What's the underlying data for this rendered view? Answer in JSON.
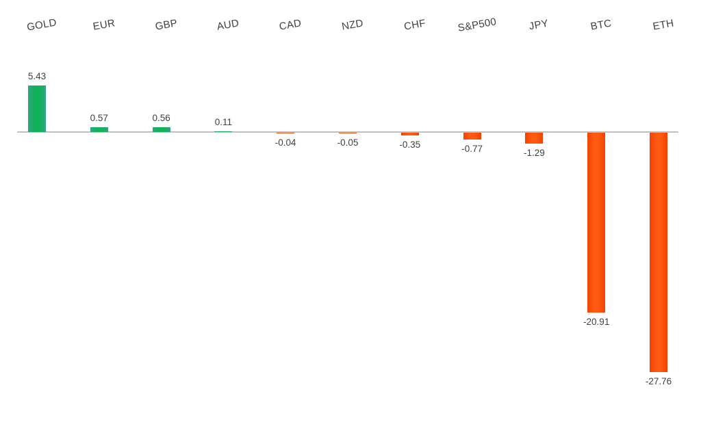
{
  "chart_data": {
    "type": "bar",
    "title": "",
    "xlabel": "",
    "ylabel": "",
    "categories": [
      "GOLD",
      "EUR",
      "GBP",
      "AUD",
      "CAD",
      "NZD",
      "CHF",
      "S&P500",
      "JPY",
      "BTC",
      "ETH"
    ],
    "values": [
      5.43,
      0.57,
      0.56,
      0.11,
      -0.04,
      -0.05,
      -0.35,
      -0.77,
      -1.29,
      -20.91,
      -27.76
    ],
    "value_labels": [
      "5.43",
      "0.57",
      "0.56",
      "0.11",
      "-0.04",
      "-0.05",
      "-0.35",
      "-0.77",
      "-1.29",
      "-20.91",
      "-27.76"
    ],
    "ylim": [
      -30,
      7
    ],
    "grid": false,
    "legend": "none",
    "category_labels_position": "top",
    "category_labels_rotation_deg": -10,
    "data_labels_shown": true,
    "colors": {
      "positive_main": "#10b355",
      "positive_edge": "#2fa387",
      "negative_main": "#ff5a12",
      "negative_edge": "#f14300",
      "axis_line": "#bfbfbf",
      "label_text": "#3f3f3f"
    }
  }
}
